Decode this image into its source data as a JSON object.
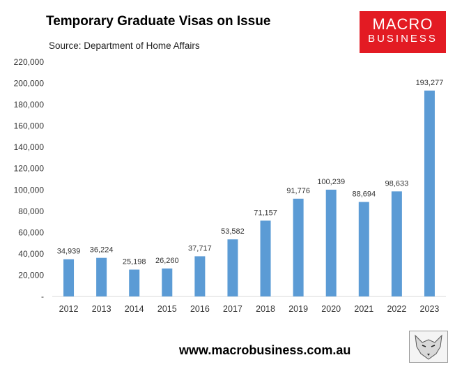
{
  "header": {
    "title": "Temporary Graduate Visas on Issue",
    "subtitle": "Source: Department of Home Affairs"
  },
  "logo": {
    "line1": "MACRO",
    "line2": "BUSINESS",
    "color": "#e31b23"
  },
  "footer": {
    "url": "www.macrobusiness.com.au"
  },
  "chart_data": {
    "type": "bar",
    "title": "Temporary Graduate Visas on Issue",
    "subtitle": "Source: Department of Home Affairs",
    "categories": [
      "2012",
      "2013",
      "2014",
      "2015",
      "2016",
      "2017",
      "2018",
      "2019",
      "2020",
      "2021",
      "2022",
      "2023"
    ],
    "values": [
      34939,
      36224,
      25198,
      26260,
      37717,
      53582,
      71157,
      91776,
      100239,
      88694,
      98633,
      193277
    ],
    "value_labels": [
      "34,939",
      "36,224",
      "25,198",
      "26,260",
      "37,717",
      "53,582",
      "71,157",
      "91,776",
      "100,239",
      "88,694",
      "98,633",
      "193,277"
    ],
    "y_ticks": [
      "-",
      "20,000",
      "40,000",
      "60,000",
      "80,000",
      "100,000",
      "120,000",
      "140,000",
      "160,000",
      "180,000",
      "200,000",
      "220,000"
    ],
    "ylim": [
      0,
      220000
    ],
    "grid": false,
    "bar_color": "#5b9bd5",
    "xlabel": "",
    "ylabel": ""
  }
}
